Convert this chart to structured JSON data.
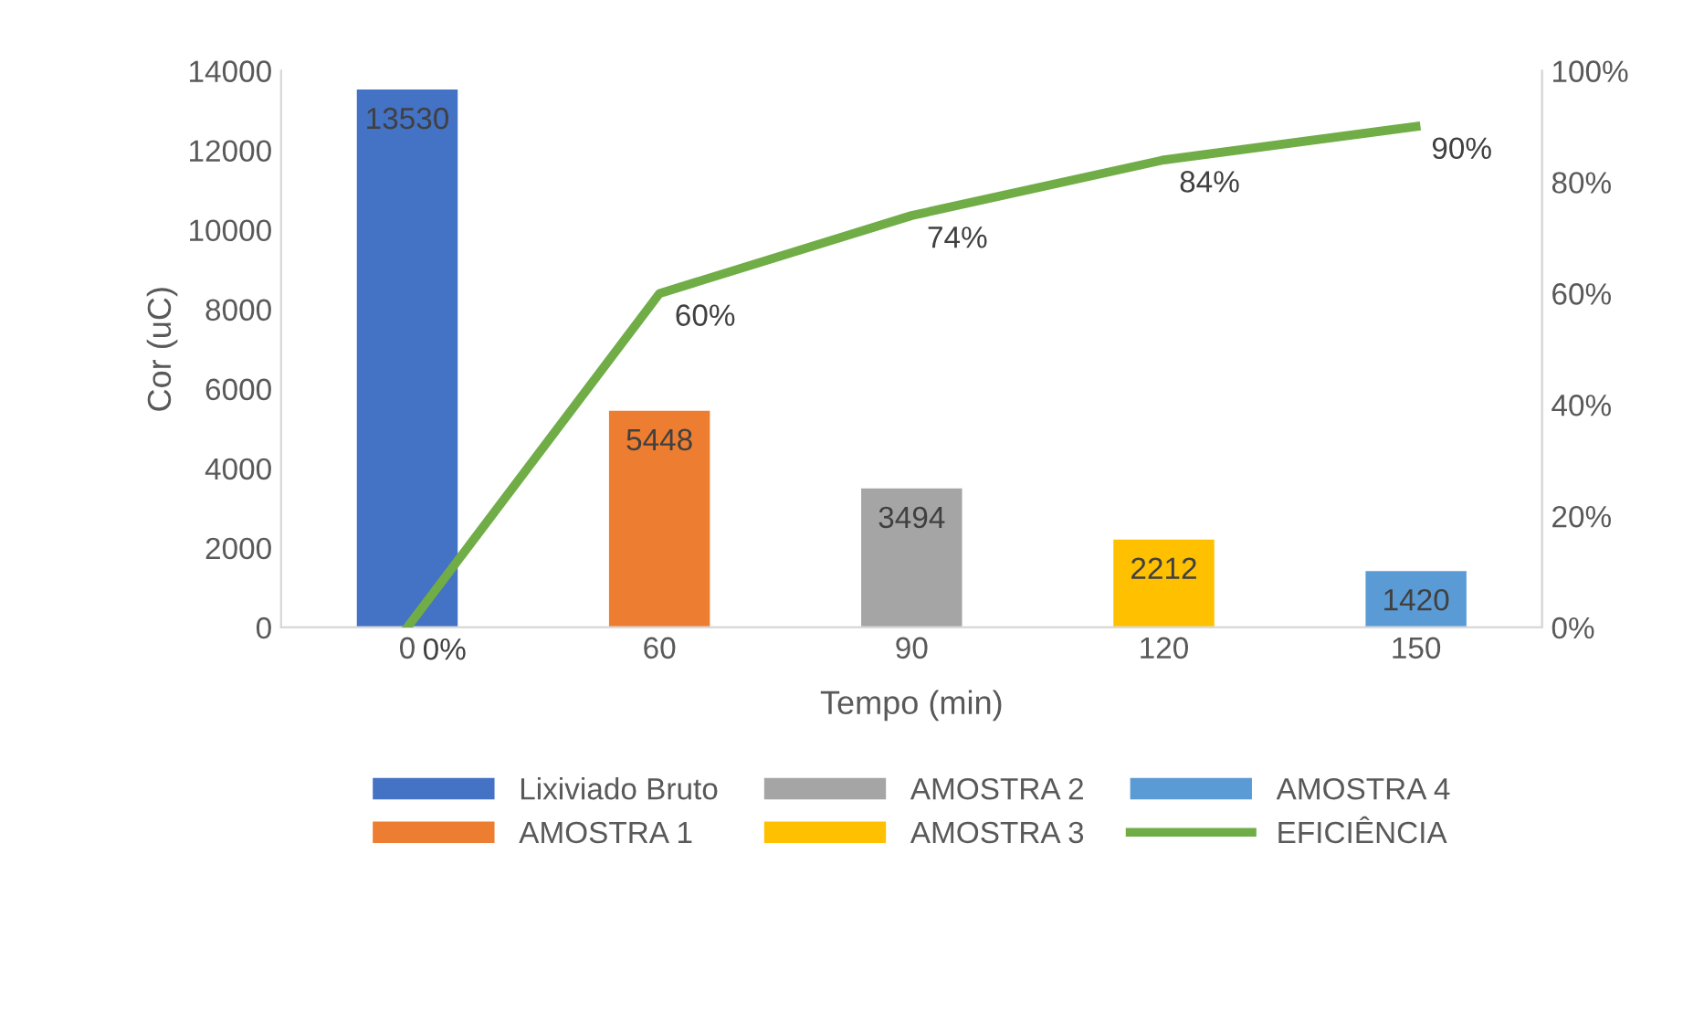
{
  "chart_data": {
    "type": "bar",
    "xlabel": "Tempo (min)",
    "ylabel": "Cor (uC)",
    "categories": [
      "0",
      "60",
      "90",
      "120",
      "150"
    ],
    "ylim": [
      0,
      14000
    ],
    "yticks": [
      0,
      2000,
      4000,
      6000,
      8000,
      10000,
      12000,
      14000
    ],
    "y2lim": [
      0,
      100
    ],
    "y2ticks": [
      {
        "value": 0,
        "label": "0%"
      },
      {
        "value": 20,
        "label": "20%"
      },
      {
        "value": 40,
        "label": "40%"
      },
      {
        "value": 60,
        "label": "60%"
      },
      {
        "value": 80,
        "label": "80%"
      },
      {
        "value": 100,
        "label": "100%"
      }
    ],
    "legend": "bottom",
    "grid": false,
    "series": [
      {
        "name": "Lixiviado Bruto",
        "color": "#4472c4",
        "values": [
          13530,
          null,
          null,
          null,
          null
        ],
        "value_labels": [
          "13530",
          null,
          null,
          null,
          null
        ]
      },
      {
        "name": "AMOSTRA 1",
        "color": "#ed7d31",
        "values": [
          null,
          5448,
          null,
          null,
          null
        ],
        "value_labels": [
          null,
          "5448",
          null,
          null,
          null
        ]
      },
      {
        "name": "AMOSTRA 2",
        "color": "#a5a5a5",
        "values": [
          null,
          null,
          3494,
          null,
          null
        ],
        "value_labels": [
          null,
          null,
          "3494",
          null,
          null
        ]
      },
      {
        "name": "AMOSTRA 3",
        "color": "#ffc000",
        "values": [
          null,
          null,
          null,
          2212,
          null
        ],
        "value_labels": [
          null,
          null,
          null,
          "2212",
          null
        ]
      },
      {
        "name": "AMOSTRA 4",
        "color": "#5b9bd5",
        "values": [
          null,
          null,
          null,
          null,
          1420
        ],
        "value_labels": [
          null,
          null,
          null,
          null,
          "1420"
        ]
      },
      {
        "name": "EFICIÊNCIA",
        "color": "#70ad47",
        "type": "line",
        "axis": "y2",
        "marker": "none",
        "line_style": "solid",
        "values": [
          0,
          60,
          74,
          84,
          90
        ],
        "value_labels": [
          "0%",
          "60%",
          "74%",
          "84%",
          "90%"
        ]
      }
    ]
  }
}
